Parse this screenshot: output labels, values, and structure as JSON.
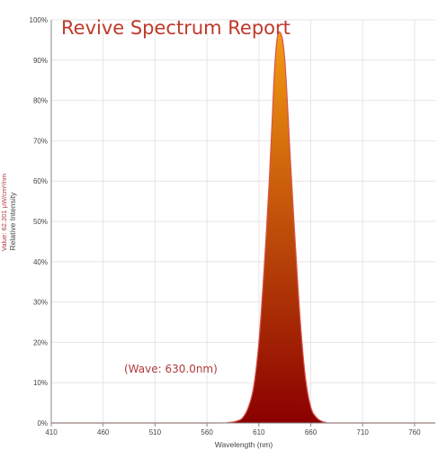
{
  "chart_data": {
    "type": "area",
    "title": "Revive Spectrum Report",
    "xlabel": "Wavelength (nm)",
    "ylabel": "Relative Intensity",
    "side_value_label": "Value: 62.201 μW/cm²/nm",
    "annotation": "(Wave: 630.0nm)",
    "xlim": [
      410,
      780
    ],
    "ylim": [
      0,
      100
    ],
    "x_ticks": [
      410,
      460,
      510,
      560,
      610,
      660,
      710,
      760
    ],
    "x_tick_labels": [
      "410",
      "460",
      "510",
      "560",
      "610",
      "660",
      "710",
      "760"
    ],
    "y_ticks": [
      0,
      10,
      20,
      30,
      40,
      50,
      60,
      70,
      80,
      90,
      100
    ],
    "y_tick_labels": [
      "0%",
      "10%",
      "20%",
      "30%",
      "40%",
      "50%",
      "60%",
      "70%",
      "80%",
      "90%",
      "100%"
    ],
    "grid": true,
    "series": [
      {
        "x": [
          410,
          560,
          580,
          590,
          595,
          600,
          605,
          610,
          615,
          620,
          623,
          625,
          628,
          632,
          635,
          638,
          640,
          645,
          650,
          655,
          660,
          665,
          670,
          675,
          680,
          780
        ],
        "y": [
          0,
          0,
          0.1,
          0.6,
          1.5,
          4,
          9,
          20,
          38,
          60,
          76,
          87,
          96,
          96,
          90,
          77,
          67,
          45,
          25,
          11,
          4,
          1.5,
          0.5,
          0.1,
          0,
          0
        ]
      }
    ],
    "colors": {
      "fill_top": "#f39c12",
      "fill_bottom": "#8b0000",
      "outline": "#d9534f",
      "title": "#c0392b",
      "annotation": "#b23a3a",
      "grid": "#e6e6e6",
      "axis": "#888888"
    }
  }
}
